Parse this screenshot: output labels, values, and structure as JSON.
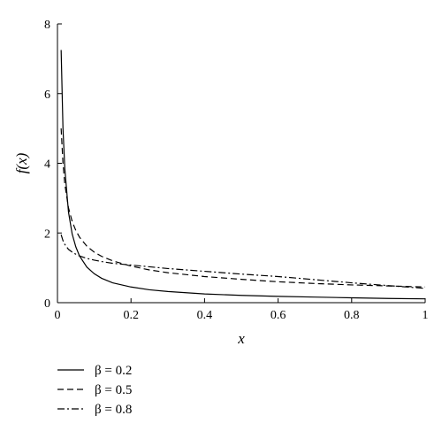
{
  "chart_data": {
    "type": "line",
    "title": "",
    "xlabel": "x",
    "ylabel": "f(x)",
    "xlim": [
      0,
      1
    ],
    "ylim": [
      0,
      8
    ],
    "xticks": [
      "0",
      "0.2",
      "0.4",
      "0.6",
      "0.8",
      "1"
    ],
    "yticks": [
      "0",
      "2",
      "4",
      "6",
      "8"
    ],
    "grid": false,
    "legend_position": "bottom-left, below plot",
    "series": [
      {
        "name": "β = 0.2",
        "style": "solid",
        "x": [
          0.01,
          0.015,
          0.02,
          0.03,
          0.04,
          0.05,
          0.06,
          0.08,
          0.1,
          0.12,
          0.15,
          0.2,
          0.25,
          0.3,
          0.4,
          0.5,
          0.6,
          0.7,
          0.8,
          0.9,
          1.0
        ],
        "y": [
          7.25,
          5.0,
          3.85,
          2.6,
          1.97,
          1.6,
          1.34,
          1.02,
          0.83,
          0.7,
          0.57,
          0.45,
          0.37,
          0.32,
          0.25,
          0.21,
          0.18,
          0.16,
          0.14,
          0.12,
          0.11
        ]
      },
      {
        "name": "β = 0.5",
        "style": "dashed",
        "x": [
          0.01,
          0.015,
          0.02,
          0.03,
          0.04,
          0.05,
          0.06,
          0.08,
          0.1,
          0.12,
          0.15,
          0.2,
          0.25,
          0.3,
          0.4,
          0.5,
          0.6,
          0.7,
          0.8,
          0.9,
          1.0
        ],
        "y": [
          5.0,
          4.0,
          3.4,
          2.72,
          2.33,
          2.07,
          1.88,
          1.62,
          1.45,
          1.33,
          1.2,
          1.05,
          0.94,
          0.86,
          0.75,
          0.67,
          0.6,
          0.55,
          0.51,
          0.48,
          0.45
        ]
      },
      {
        "name": "β = 0.8",
        "style": "dashdot",
        "x": [
          0.01,
          0.015,
          0.02,
          0.03,
          0.04,
          0.05,
          0.06,
          0.08,
          0.1,
          0.12,
          0.15,
          0.2,
          0.25,
          0.3,
          0.4,
          0.5,
          0.6,
          0.7,
          0.8,
          0.9,
          1.0
        ],
        "y": [
          1.95,
          1.78,
          1.67,
          1.53,
          1.45,
          1.39,
          1.34,
          1.27,
          1.22,
          1.18,
          1.13,
          1.08,
          1.03,
          0.98,
          0.9,
          0.82,
          0.75,
          0.66,
          0.57,
          0.49,
          0.41
        ]
      }
    ]
  }
}
